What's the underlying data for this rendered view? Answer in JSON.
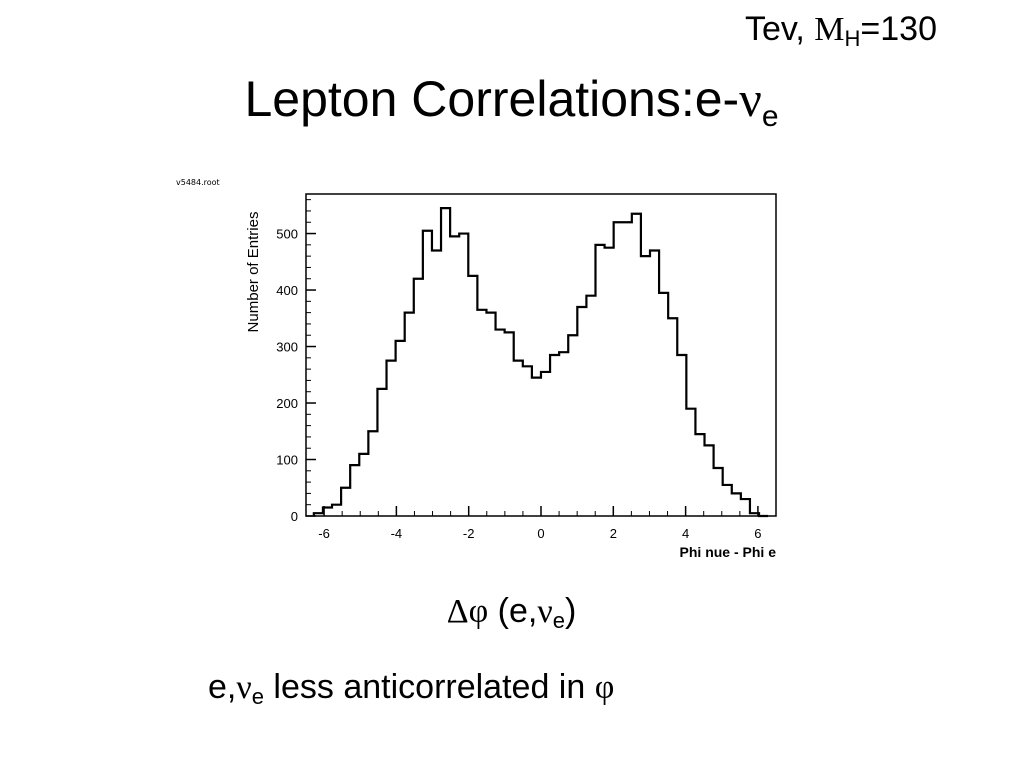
{
  "header": {
    "note_prefix": "Tev, ",
    "note_symbol": "M",
    "note_sub": "H",
    "note_suffix": "=130",
    "title_text": "Lepton Correlations:e-",
    "title_symbol": "ν",
    "title_sub": "e"
  },
  "plot_tag": "v5484.root",
  "caption": {
    "delta": "Δφ",
    "open": " (e,",
    "nu": "ν",
    "sub": "e",
    "close": ")"
  },
  "bullet": {
    "lead": "e,",
    "nu": "ν",
    "sub": "e",
    "text": " less anticorrelated in ",
    "phi": "φ"
  },
  "chart_data": {
    "type": "histogram",
    "title": "",
    "xlabel": "Phi nue - Phi e",
    "ylabel": "Number of Entries",
    "xlim": [
      -6.5,
      6.5
    ],
    "ylim": [
      0,
      570
    ],
    "xticks": [
      -6,
      -4,
      -2,
      0,
      2,
      4,
      6
    ],
    "yticks": [
      0,
      100,
      200,
      300,
      400,
      500
    ],
    "bin_edges_start": -6.2832,
    "bin_width": 0.2513,
    "values": [
      5,
      15,
      20,
      50,
      90,
      110,
      150,
      225,
      275,
      310,
      360,
      420,
      505,
      470,
      545,
      495,
      500,
      425,
      365,
      360,
      330,
      325,
      275,
      265,
      245,
      255,
      285,
      290,
      320,
      370,
      390,
      480,
      475,
      520,
      520,
      535,
      460,
      470,
      395,
      350,
      285,
      190,
      145,
      125,
      85,
      55,
      40,
      30,
      5,
      0
    ]
  }
}
